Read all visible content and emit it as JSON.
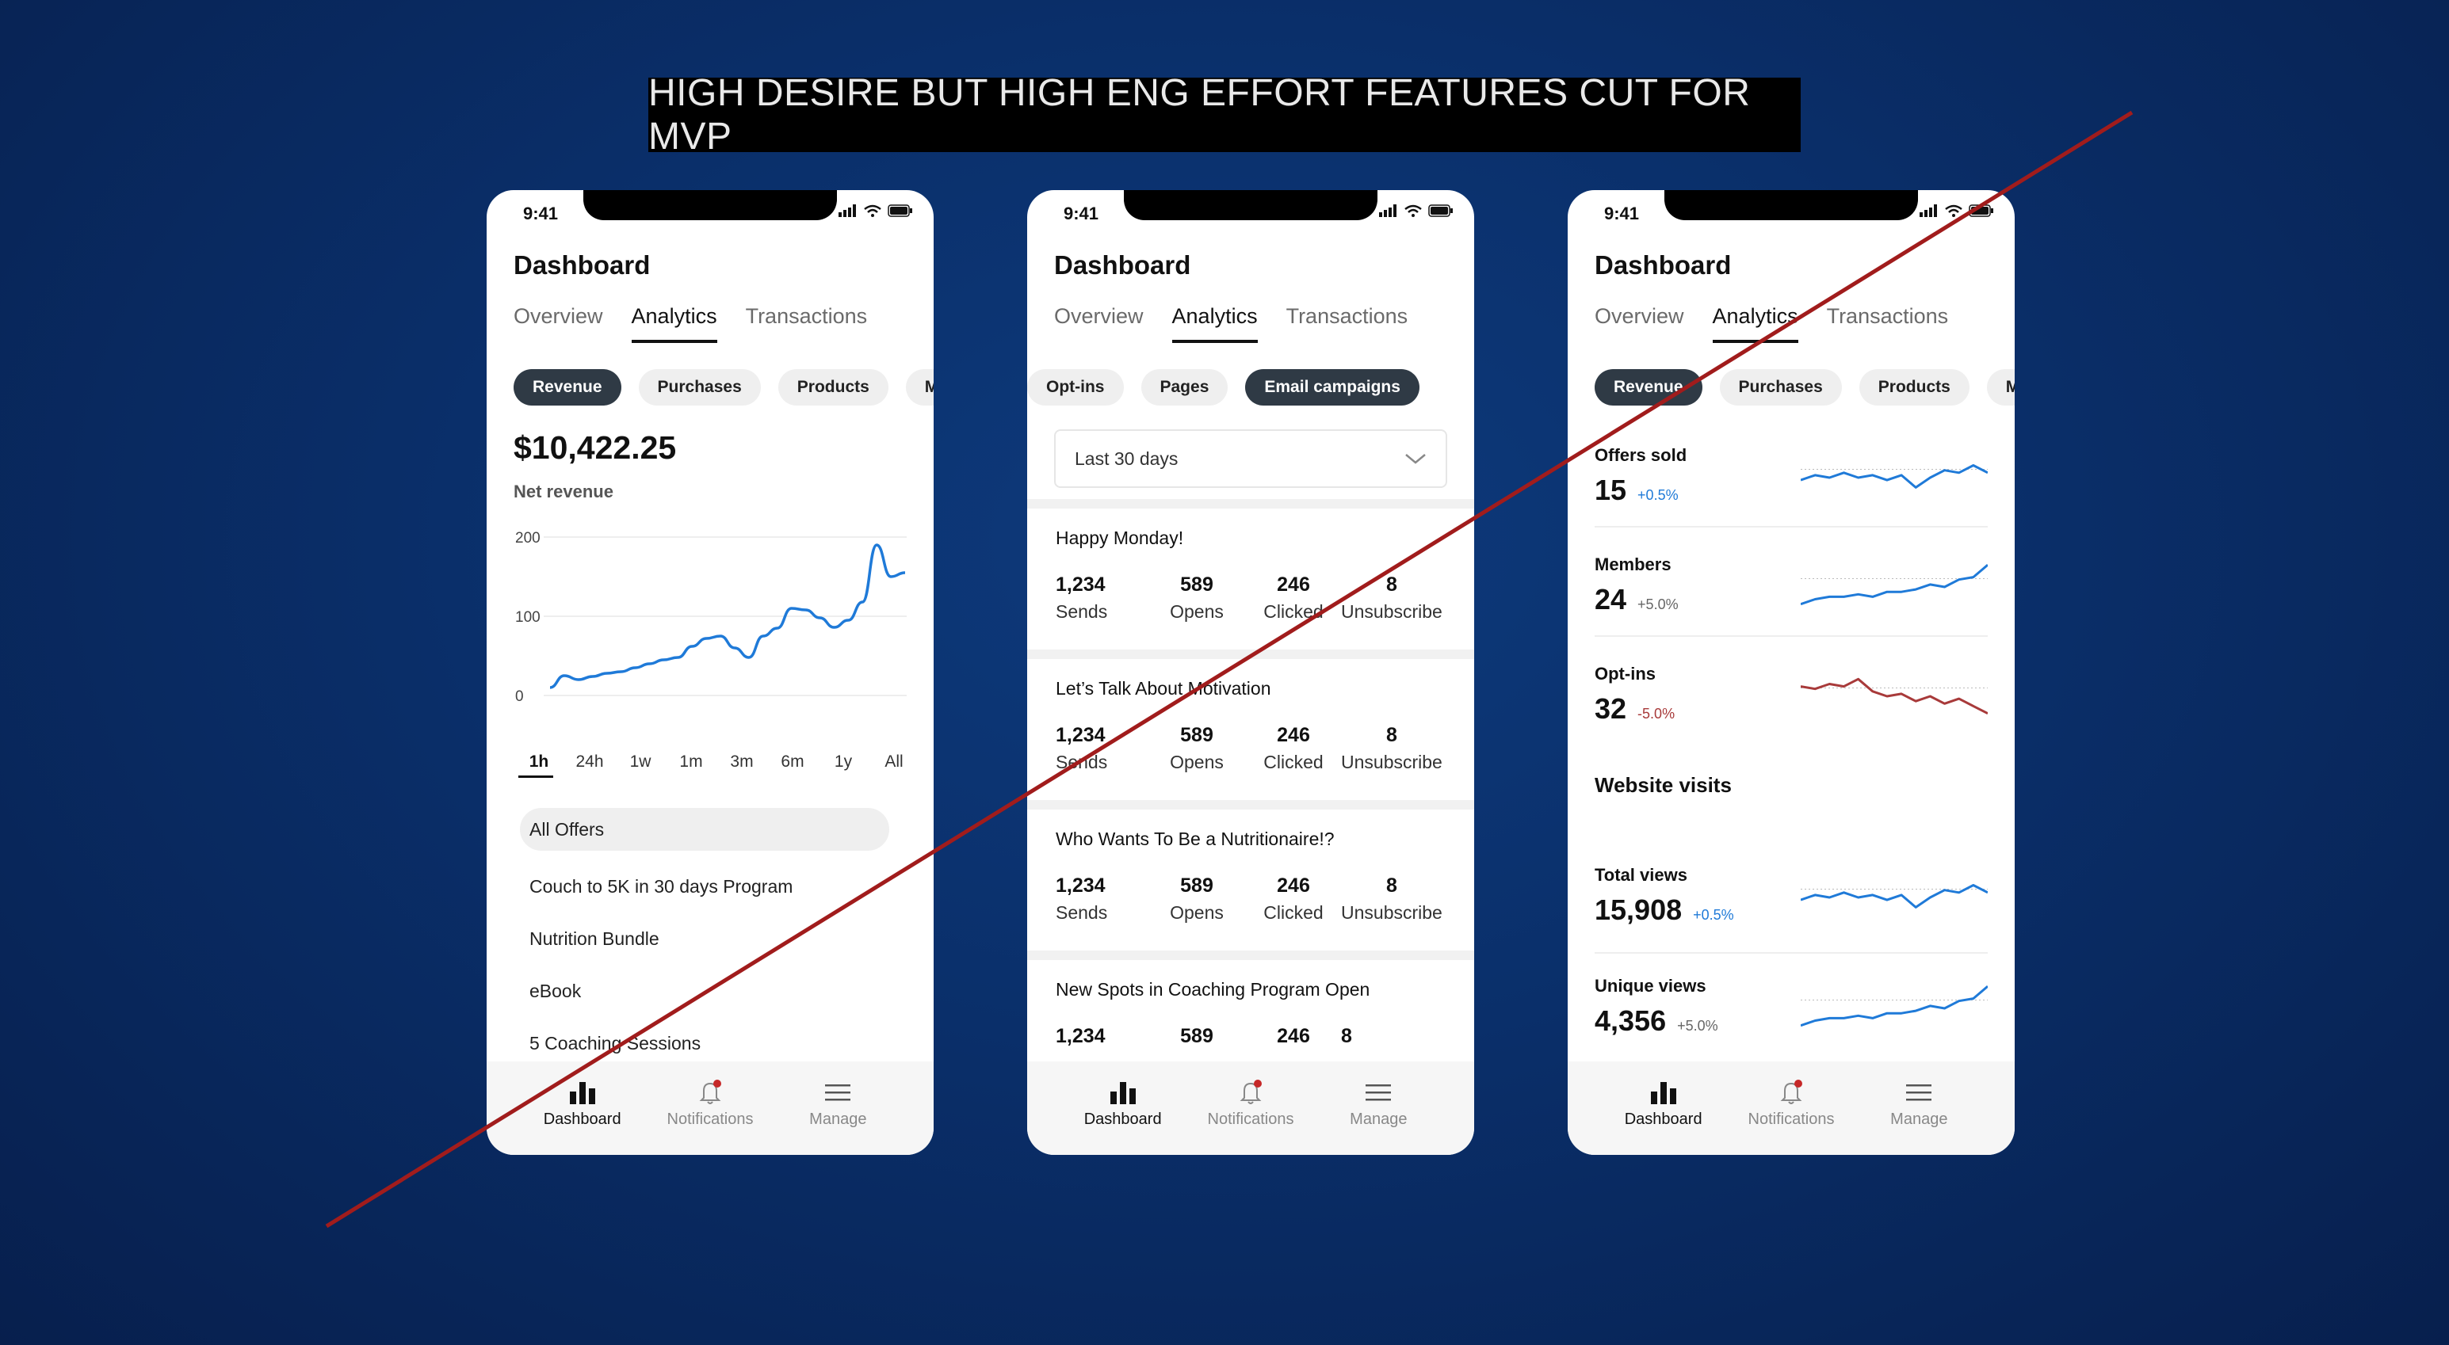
{
  "banner": "HIGH DESIRE BUT HIGH ENG EFFORT FEATURES CUT FOR MVP",
  "colors": {
    "accent": "#1f7ad8",
    "negative": "#a83a3a",
    "cut_line": "#a11c1c",
    "chip_active": "#2f3a45"
  },
  "phone_common": {
    "time": "9:41",
    "title": "Dashboard",
    "tabs": [
      "Overview",
      "Analytics",
      "Transactions"
    ],
    "nav": [
      {
        "label": "Dashboard",
        "icon": "bar-chart-icon"
      },
      {
        "label": "Notifications",
        "icon": "bell-icon"
      },
      {
        "label": "Manage",
        "icon": "hamburger-menu-icon"
      }
    ]
  },
  "phone1": {
    "chips": [
      "Revenue",
      "Purchases",
      "Products",
      "M"
    ],
    "amount": "$10,422.25",
    "amount_label": "Net revenue",
    "ranges": [
      "1h",
      "24h",
      "1w",
      "1m",
      "3m",
      "6m",
      "1y",
      "All"
    ],
    "offers": [
      "All Offers",
      "Couch to 5K in 30 days Program",
      "Nutrition Bundle",
      "eBook",
      "5 Coaching Sessions"
    ],
    "chart_data": {
      "type": "line",
      "ylim": [
        0,
        200
      ],
      "yticks": [
        "200",
        "100",
        "0"
      ],
      "y": [
        10,
        25,
        20,
        24,
        28,
        30,
        35,
        40,
        45,
        48,
        62,
        72,
        75,
        60,
        48,
        75,
        85,
        110,
        108,
        98,
        86,
        95,
        118,
        190,
        150,
        155
      ]
    }
  },
  "phone2": {
    "chips": [
      "Opt-ins",
      "Pages",
      "Email campaigns"
    ],
    "dropdown": "Last 30 days",
    "stat_labels": [
      "Sends",
      "Opens",
      "Clicked",
      "Unsubscribe"
    ],
    "campaigns": [
      {
        "title": "Happy Monday!",
        "values": [
          "1,234",
          "589",
          "246",
          "8"
        ]
      },
      {
        "title": "Let’s Talk About Motivation",
        "values": [
          "1,234",
          "589",
          "246",
          "8"
        ]
      },
      {
        "title": "Who Wants To Be a Nutritionaire!?",
        "values": [
          "1,234",
          "589",
          "246",
          "8"
        ]
      },
      {
        "title": "New Spots in Coaching Program Open",
        "values": [
          "1,234",
          "589",
          "246",
          "8"
        ]
      }
    ]
  },
  "phone3": {
    "chips": [
      "Revenue",
      "Purchases",
      "Products",
      "M"
    ],
    "metrics": [
      {
        "label": "Offers sold",
        "value": "15",
        "delta": "+0.5%",
        "trend": "up"
      },
      {
        "label": "Members",
        "value": "24",
        "delta": "+5.0%",
        "trend": "neutral"
      },
      {
        "label": "Opt-ins",
        "value": "32",
        "delta": "-5.0%",
        "trend": "down"
      }
    ],
    "section": "Website visits",
    "visits": [
      {
        "label": "Total views",
        "value": "15,908",
        "delta": "+0.5%",
        "trend": "up"
      },
      {
        "label": "Unique views",
        "value": "4,356",
        "delta": "+5.0%",
        "trend": "neutral"
      }
    ]
  }
}
